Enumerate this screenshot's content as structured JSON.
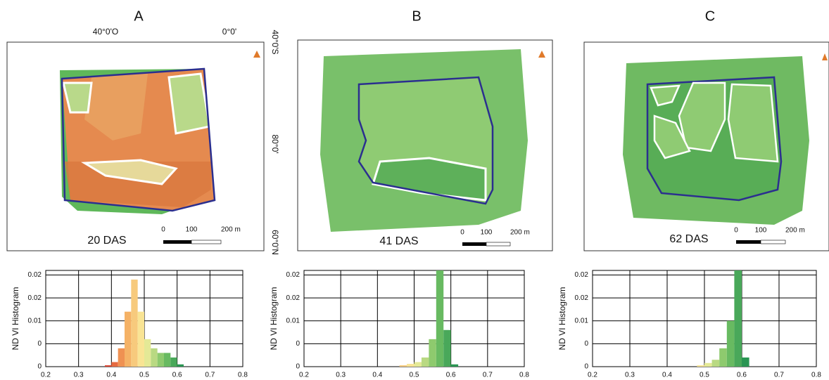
{
  "panels": [
    {
      "letter": "A",
      "das": "20 DAS",
      "scale": [
        "0",
        "100",
        "200 m"
      ]
    },
    {
      "letter": "B",
      "das": "41 DAS",
      "scale": [
        "0",
        "100",
        "200 m"
      ]
    },
    {
      "letter": "C",
      "das": "62 DAS",
      "scale": [
        "0",
        "100",
        "200 m"
      ]
    }
  ],
  "coords": {
    "top": [
      "40°0'O",
      "0°0'"
    ],
    "side": [
      "40°0'S",
      "80°0'",
      "60°0'N"
    ]
  },
  "chart_data": [
    {
      "type": "histogram",
      "ylabel": "ND VI Histogram",
      "bins": [
        0.2,
        0.22,
        0.24,
        0.26,
        0.28,
        0.3,
        0.32,
        0.34,
        0.36,
        0.38,
        0.4,
        0.42,
        0.44,
        0.46,
        0.48,
        0.5,
        0.52,
        0.54,
        0.56,
        0.58,
        0.6,
        0.62,
        0.64,
        0.66,
        0.68,
        0.7,
        0.72,
        0.74,
        0.76,
        0.78,
        0.8
      ],
      "values": [
        0,
        0,
        0,
        0,
        0,
        0,
        0,
        0,
        0,
        0.0003,
        0.001,
        0.004,
        0.012,
        0.019,
        0.012,
        0.006,
        0.004,
        0.003,
        0.003,
        0.002,
        0.0005,
        0,
        0,
        0,
        0,
        0,
        0,
        0,
        0,
        0
      ],
      "xlim": [
        0.2,
        0.8
      ],
      "xticks": [
        0.2,
        0.3,
        0.4,
        0.5,
        0.6,
        0.7,
        0.8
      ],
      "ylim": [
        0,
        0.021
      ],
      "yticks": [
        {
          "value": 0,
          "label": "0"
        },
        {
          "value": 0.005,
          "label": "0"
        },
        {
          "value": 0.01,
          "label": "0.01"
        },
        {
          "value": 0.015,
          "label": "0.02"
        },
        {
          "value": 0.02,
          "label": "0.02"
        }
      ],
      "grid": true
    },
    {
      "type": "histogram",
      "ylabel": "ND VI Histogram",
      "bins": [
        0.2,
        0.22,
        0.24,
        0.26,
        0.28,
        0.3,
        0.32,
        0.34,
        0.36,
        0.38,
        0.4,
        0.42,
        0.44,
        0.46,
        0.48,
        0.5,
        0.52,
        0.54,
        0.56,
        0.58,
        0.6,
        0.62,
        0.64,
        0.66,
        0.68,
        0.7,
        0.72,
        0.74,
        0.76,
        0.78,
        0.8
      ],
      "values": [
        0,
        0,
        0,
        0,
        0,
        0,
        0,
        0,
        0,
        0,
        0,
        0,
        0,
        0.0003,
        0.0006,
        0.001,
        0.002,
        0.006,
        0.021,
        0.008,
        0.0005,
        0,
        0,
        0,
        0,
        0,
        0,
        0,
        0,
        0
      ],
      "xlim": [
        0.2,
        0.8
      ],
      "xticks": [
        0.2,
        0.3,
        0.4,
        0.5,
        0.6,
        0.7,
        0.8
      ],
      "ylim": [
        0,
        0.021
      ],
      "yticks": [
        {
          "value": 0,
          "label": "0"
        },
        {
          "value": 0.005,
          "label": "0"
        },
        {
          "value": 0.01,
          "label": "0.01"
        },
        {
          "value": 0.015,
          "label": "0.02"
        },
        {
          "value": 0.02,
          "label": "0.02"
        }
      ],
      "grid": true
    },
    {
      "type": "histogram",
      "ylabel": "ND VI Histogram",
      "bins": [
        0.2,
        0.22,
        0.24,
        0.26,
        0.28,
        0.3,
        0.32,
        0.34,
        0.36,
        0.38,
        0.4,
        0.42,
        0.44,
        0.46,
        0.48,
        0.5,
        0.52,
        0.54,
        0.56,
        0.58,
        0.6,
        0.62,
        0.64,
        0.66,
        0.68,
        0.7,
        0.72,
        0.74,
        0.76,
        0.78,
        0.8
      ],
      "values": [
        0,
        0,
        0,
        0,
        0,
        0,
        0,
        0,
        0,
        0,
        0,
        0,
        0,
        0,
        0.0003,
        0.0008,
        0.0015,
        0.004,
        0.01,
        0.021,
        0.002,
        0,
        0,
        0,
        0,
        0,
        0,
        0,
        0,
        0
      ],
      "xlim": [
        0.2,
        0.8
      ],
      "xticks": [
        0.2,
        0.3,
        0.4,
        0.5,
        0.6,
        0.7,
        0.8
      ],
      "ylim": [
        0,
        0.021
      ],
      "yticks": [
        {
          "value": 0,
          "label": "0"
        },
        {
          "value": 0.005,
          "label": "0"
        },
        {
          "value": 0.01,
          "label": "0.01"
        },
        {
          "value": 0.015,
          "label": "0.02"
        },
        {
          "value": 0.02,
          "label": "0.02"
        }
      ],
      "grid": true
    }
  ]
}
